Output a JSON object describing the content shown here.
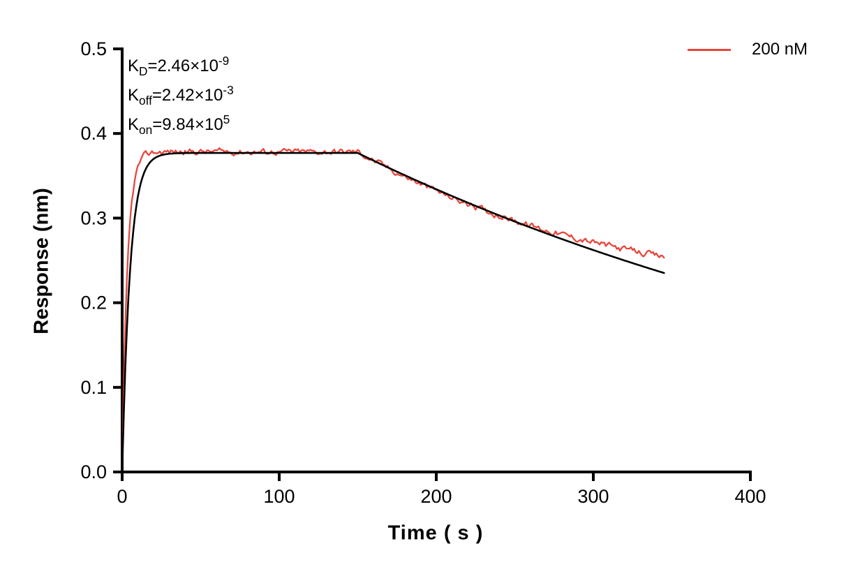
{
  "chart_data": {
    "type": "line",
    "title": "",
    "xlabel": "Time ( s )",
    "ylabel": "Response (nm)",
    "xlim": [
      0,
      400
    ],
    "ylim": [
      0,
      0.5
    ],
    "xticks": [
      "0",
      "100",
      "200",
      "300",
      "400"
    ],
    "yticks": [
      "0.0",
      "0.1",
      "0.2",
      "0.3",
      "0.4",
      "0.5"
    ],
    "grid": false,
    "legend_position": "top-right",
    "legend": [
      {
        "label": "200 nM",
        "color": "#E8463C"
      }
    ],
    "annotations": [
      {
        "base": "K",
        "sub": "D",
        "eq": "=2.46×10",
        "sup": "-9"
      },
      {
        "base": "K",
        "sub": "off",
        "eq": "=2.42×10",
        "sup": "-3"
      },
      {
        "base": "K",
        "sub": "on",
        "eq": "=9.84×10",
        "sup": "5"
      }
    ],
    "kinetics": {
      "KD": 2.46e-09,
      "koff": 0.00242,
      "kon": 984000.0,
      "concentration_nM": 200,
      "association_start_s": 0,
      "association_end_s": 150,
      "dissociation_end_s": 345,
      "plateau_response_nm": 0.378,
      "final_response_nm": 0.25
    },
    "series": [
      {
        "name": "200 nM",
        "role": "measured",
        "color": "#E8463C",
        "model": {
          "rmax": 0.3785,
          "k_obs": 0.3,
          "k_off": 0.00242,
          "t_assoc_end": 150,
          "t_end": 345,
          "noise": 0.003,
          "dev_sin": -0.02,
          "dev_quad": 0.075
        }
      },
      {
        "name": "Fit",
        "role": "fit",
        "color": "#000000",
        "model": {
          "rmax": 0.377,
          "k_obs": 0.199,
          "k_off": 0.00242,
          "t_assoc_end": 150,
          "t_end": 345,
          "noise": 0,
          "dev_sin": 0,
          "dev_quad": 0
        }
      }
    ]
  }
}
